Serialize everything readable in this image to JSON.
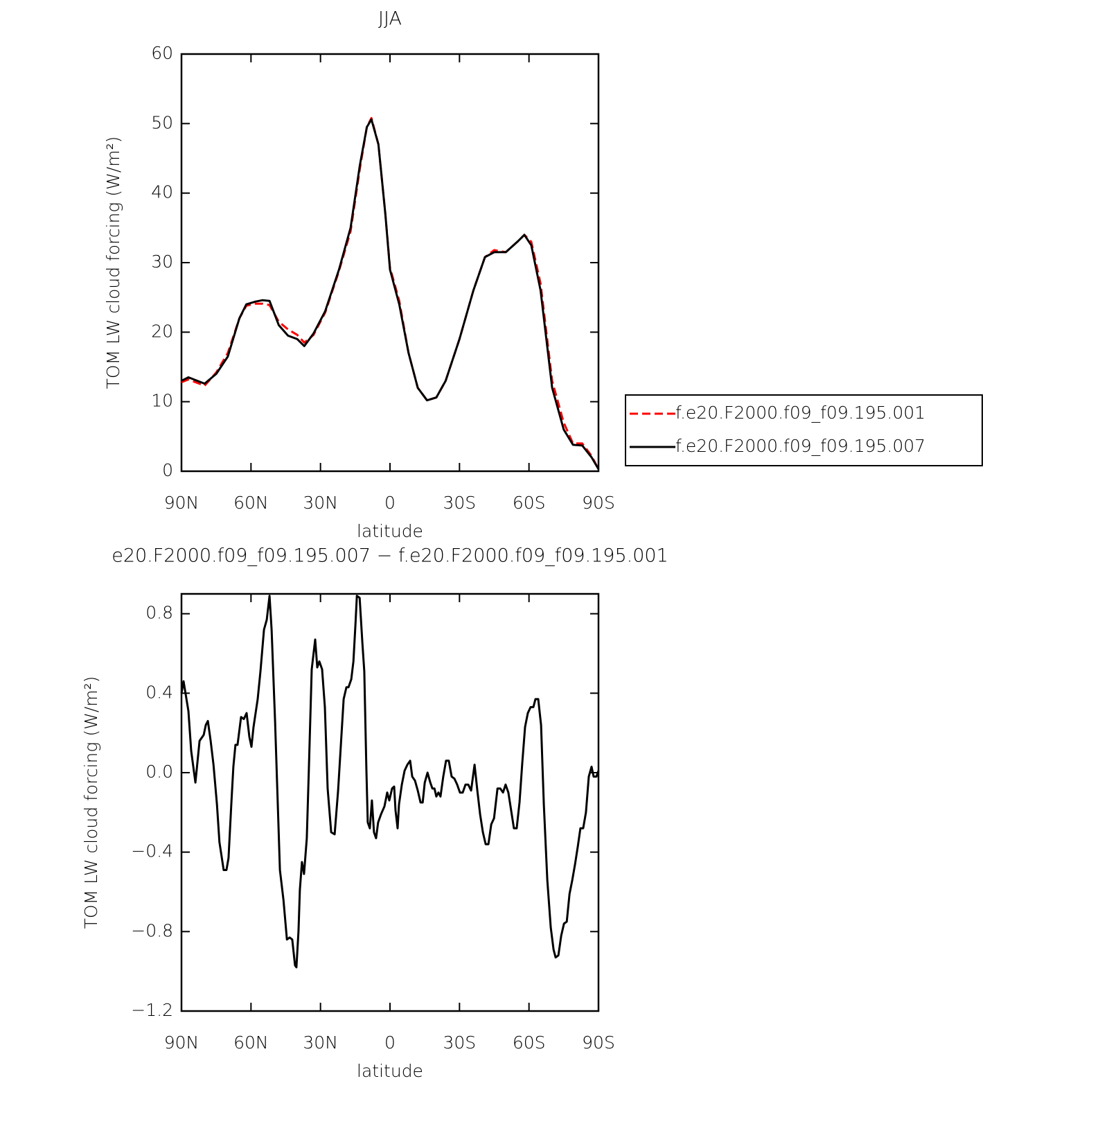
{
  "chart_data": [
    {
      "type": "line",
      "title": "JJA",
      "xlabel": "latitude",
      "ylabel": "TOM LW cloud forcing (W/m²)",
      "x": [
        90,
        87,
        80,
        75,
        70,
        65,
        62,
        58,
        55,
        52,
        48,
        44,
        40,
        37,
        33,
        28,
        22,
        17,
        13,
        10,
        8,
        5,
        2,
        0,
        -4,
        -8,
        -12,
        -16,
        -20,
        -24,
        -30,
        -36,
        -41,
        -45,
        -50,
        -55,
        -58,
        -61,
        -65,
        -70,
        -75,
        -79,
        -83,
        -87,
        -90
      ],
      "series": [
        {
          "name": "f.e20.F2000.f09_f09.195.001",
          "color": "#ff0000",
          "dash": true,
          "values": [
            12.8,
            13.2,
            12.3,
            14.2,
            17,
            22,
            23.8,
            24.1,
            24.1,
            23.9,
            21.5,
            20.4,
            19.6,
            18.5,
            19.6,
            22.8,
            28.8,
            34.5,
            43.5,
            49.5,
            50.8,
            47,
            37,
            29.3,
            24.5,
            17,
            12,
            10.2,
            10.6,
            13,
            19,
            26,
            30.8,
            31.8,
            31.5,
            33,
            34,
            33,
            27,
            13,
            7,
            4,
            4,
            2.2,
            0.3
          ]
        },
        {
          "name": "f.e20.F2000.f09_f09.195.007",
          "color": "#000000",
          "dash": false,
          "values": [
            13,
            13.5,
            12.6,
            14,
            16.5,
            22,
            24,
            24.4,
            24.6,
            24.5,
            21,
            19.5,
            19,
            18,
            19.8,
            23,
            29,
            35,
            44,
            49.5,
            50.6,
            47,
            37,
            29,
            24,
            17,
            12,
            10.2,
            10.6,
            13,
            19,
            26,
            30.8,
            31.5,
            31.5,
            33,
            34,
            32.5,
            26,
            12,
            6,
            3.8,
            3.7,
            2,
            0.3
          ]
        }
      ],
      "xlim": [
        90,
        -90
      ],
      "xticks": [
        {
          "value": 90,
          "label": "90N"
        },
        {
          "value": 60,
          "label": "60N"
        },
        {
          "value": 30,
          "label": "30N"
        },
        0,
        {
          "value": -30,
          "label": "30S"
        },
        {
          "value": -60,
          "label": "60S"
        },
        {
          "value": -90,
          "label": "90S"
        }
      ],
      "ylim": [
        0,
        60
      ],
      "yticks": [
        0,
        10,
        20,
        30,
        40,
        50,
        60
      ],
      "legend": "right"
    },
    {
      "type": "line",
      "title": "e20.F2000.f09_f09.195.007 − f.e20.F2000.f09_f09.195.001",
      "xlabel": "latitude",
      "ylabel": "TOM LW cloud forcing (W/m²)",
      "x": [
        90,
        89.1,
        87.0,
        85.8,
        84.0,
        82.2,
        80.4,
        79.5,
        78.6,
        77.4,
        76.2,
        74.7,
        73.6,
        71.8,
        70.6,
        69.7,
        68.5,
        67.6,
        66.7,
        65.8,
        64.3,
        63.1,
        61.9,
        60.7,
        59.8,
        58.9,
        57.1,
        55.9,
        54.4,
        53.2,
        52.0,
        51.1,
        49.6,
        47.5,
        46.0,
        44.5,
        43.3,
        42.2,
        41.0,
        40.4,
        39.5,
        38.9,
        38.0,
        37.1,
        35.9,
        35.0,
        33.8,
        32.3,
        31.4,
        30.5,
        29.3,
        28.1,
        26.9,
        25.4,
        23.9,
        22.4,
        21.2,
        20.0,
        18.8,
        17.9,
        16.7,
        15.8,
        14.9,
        14.3,
        13.1,
        11.9,
        11.1,
        10.2,
        9.6,
        8.7,
        7.8,
        6.9,
        6.0,
        5.1,
        3.9,
        2.4,
        1.2,
        0.3,
        -0.9,
        -1.8,
        -2.4,
        -3.3,
        -3.9,
        -5.1,
        -6.3,
        -7.5,
        -8.7,
        -9.6,
        -10.8,
        -12.0,
        -13.2,
        -14.1,
        -15.0,
        -16.2,
        -17.4,
        -18.3,
        -19.2,
        -20.0,
        -20.9,
        -21.8,
        -23.0,
        -24.2,
        -25.4,
        -26.6,
        -27.8,
        -29.0,
        -30.2,
        -31.4,
        -32.6,
        -33.8,
        -35.0,
        -36.5,
        -37.7,
        -38.9,
        -40.1,
        -41.3,
        -42.5,
        -43.7,
        -44.9,
        -46.4,
        -47.6,
        -48.8,
        -49.9,
        -51.1,
        -52.3,
        -53.5,
        -54.7,
        -55.9,
        -57.1,
        -58.3,
        -59.5,
        -60.7,
        -61.9,
        -62.8,
        -64.0,
        -65.2,
        -66.4,
        -67.9,
        -69.4,
        -70.6,
        -71.5,
        -72.7,
        -73.9,
        -75.1,
        -76.3,
        -77.5,
        -78.7,
        -79.9,
        -81.1,
        -82.2,
        -83.4,
        -84.6,
        -85.8,
        -87.0,
        -87.9,
        -89.1,
        -90
      ],
      "series": [
        {
          "color": "#000000",
          "dash": false,
          "values": [
            0.4,
            0.46,
            0.31,
            0.11,
            -0.05,
            0.16,
            0.19,
            0.24,
            0.26,
            0.16,
            0.04,
            -0.16,
            -0.35,
            -0.49,
            -0.49,
            -0.43,
            -0.16,
            0.03,
            0.14,
            0.14,
            0.28,
            0.27,
            0.3,
            0.18,
            0.13,
            0.23,
            0.37,
            0.51,
            0.72,
            0.77,
            0.89,
            0.72,
            0.26,
            -0.49,
            -0.64,
            -0.84,
            -0.83,
            -0.84,
            -0.97,
            -0.98,
            -0.8,
            -0.59,
            -0.45,
            -0.51,
            -0.33,
            0.02,
            0.52,
            0.67,
            0.53,
            0.56,
            0.52,
            0.33,
            -0.08,
            -0.3,
            -0.31,
            -0.09,
            0.14,
            0.37,
            0.43,
            0.43,
            0.47,
            0.56,
            0.75,
            0.89,
            0.88,
            0.65,
            0.51,
            0.02,
            -0.25,
            -0.28,
            -0.14,
            -0.3,
            -0.33,
            -0.25,
            -0.21,
            -0.17,
            -0.1,
            -0.14,
            -0.08,
            -0.07,
            -0.19,
            -0.28,
            -0.16,
            -0.06,
            0.01,
            0.04,
            0.06,
            -0.02,
            -0.04,
            -0.09,
            -0.15,
            -0.15,
            -0.05,
            0.0,
            -0.05,
            -0.08,
            -0.08,
            -0.12,
            -0.1,
            -0.12,
            -0.02,
            0.06,
            0.06,
            -0.02,
            -0.03,
            -0.06,
            -0.1,
            -0.1,
            -0.06,
            -0.06,
            -0.09,
            0.04,
            -0.09,
            -0.21,
            -0.3,
            -0.36,
            -0.36,
            -0.26,
            -0.23,
            -0.08,
            -0.08,
            -0.1,
            -0.06,
            -0.1,
            -0.19,
            -0.28,
            -0.28,
            -0.15,
            0.05,
            0.23,
            0.3,
            0.33,
            0.33,
            0.37,
            0.37,
            0.24,
            -0.16,
            -0.54,
            -0.78,
            -0.89,
            -0.93,
            -0.92,
            -0.82,
            -0.76,
            -0.75,
            -0.61,
            -0.54,
            -0.46,
            -0.37,
            -0.28,
            -0.28,
            -0.2,
            -0.02,
            0.03,
            -0.02,
            -0.02,
            0.01
          ]
        }
      ],
      "xlim": [
        90,
        -90
      ],
      "xticks": [
        {
          "value": 90,
          "label": "90N"
        },
        {
          "value": 60,
          "label": "60N"
        },
        {
          "value": 30,
          "label": "30N"
        },
        0,
        {
          "value": -30,
          "label": "30S"
        },
        {
          "value": -60,
          "label": "60S"
        },
        {
          "value": -90,
          "label": "90S"
        }
      ],
      "ylim": [
        -1.2,
        0.9
      ],
      "yticks": [
        {
          "value": -1.2,
          "label": "−1.2"
        },
        {
          "value": -0.8,
          "label": "−0.8"
        },
        {
          "value": -0.4,
          "label": "−0.4"
        },
        {
          "value": 0,
          "label": "0.0"
        },
        0.4,
        0.8
      ]
    }
  ]
}
